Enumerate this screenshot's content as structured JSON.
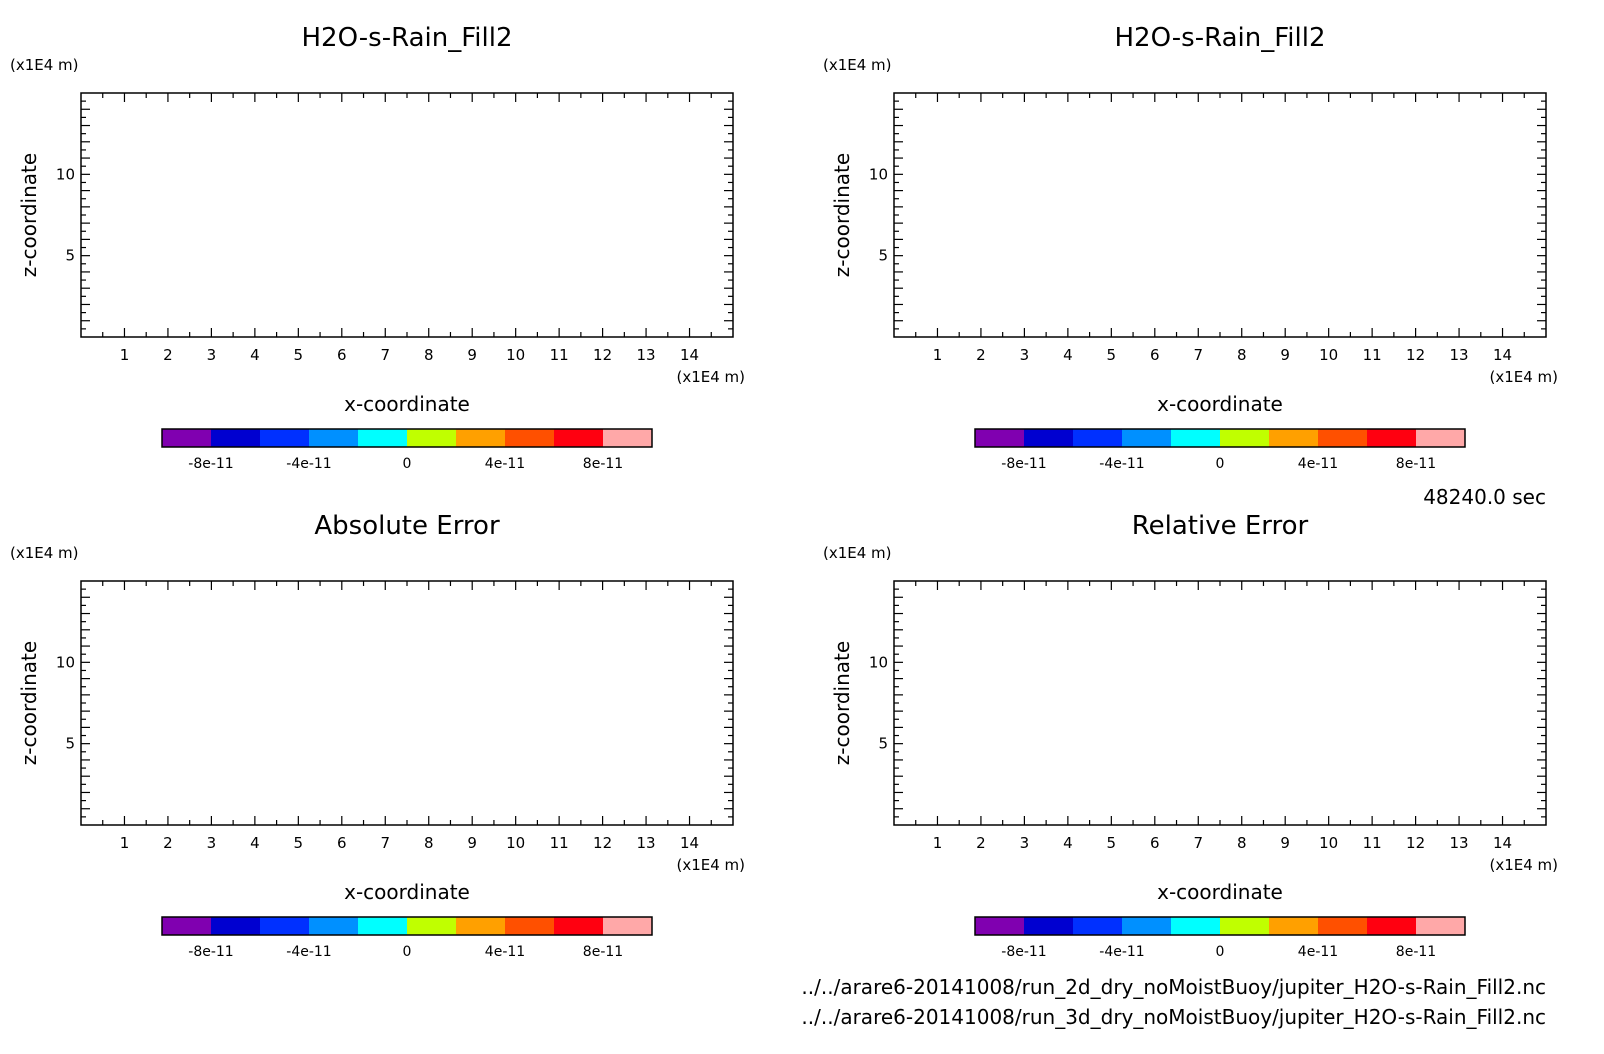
{
  "chart_data": [
    {
      "type": "heatmap",
      "title": "H2O-s-Rain_Fill2",
      "xlabel": "x-coordinate",
      "ylabel": "z-coordinate",
      "x_unit": "(x1E4 m)",
      "y_unit": "(x1E4 m)",
      "xlim": [
        0,
        15
      ],
      "ylim": [
        0,
        15
      ],
      "x_ticks": [
        "1",
        "2",
        "3",
        "4",
        "5",
        "6",
        "7",
        "8",
        "9",
        "10",
        "11",
        "12",
        "13",
        "14"
      ],
      "y_ticks": [
        "5",
        "10"
      ],
      "colorbar": {
        "colors": [
          "#8000b0",
          "#0000d0",
          "#0030ff",
          "#0090ff",
          "#00ffff",
          "#c0ff00",
          "#ffa000",
          "#ff5000",
          "#ff0010",
          "#ffa8a8"
        ],
        "labels": [
          "-8e-11",
          "-4e-11",
          "0",
          "4e-11",
          "8e-11"
        ]
      },
      "values": []
    },
    {
      "type": "heatmap",
      "title": "H2O-s-Rain_Fill2",
      "xlabel": "x-coordinate",
      "ylabel": "z-coordinate",
      "x_unit": "(x1E4 m)",
      "y_unit": "(x1E4 m)",
      "xlim": [
        0,
        15
      ],
      "ylim": [
        0,
        15
      ],
      "x_ticks": [
        "1",
        "2",
        "3",
        "4",
        "5",
        "6",
        "7",
        "8",
        "9",
        "10",
        "11",
        "12",
        "13",
        "14"
      ],
      "y_ticks": [
        "5",
        "10"
      ],
      "colorbar": {
        "colors": [
          "#8000b0",
          "#0000d0",
          "#0030ff",
          "#0090ff",
          "#00ffff",
          "#c0ff00",
          "#ffa000",
          "#ff5000",
          "#ff0010",
          "#ffa8a8"
        ],
        "labels": [
          "-8e-11",
          "-4e-11",
          "0",
          "4e-11",
          "8e-11"
        ]
      },
      "values": []
    },
    {
      "type": "heatmap",
      "title": "Absolute Error",
      "xlabel": "x-coordinate",
      "ylabel": "z-coordinate",
      "x_unit": "(x1E4 m)",
      "y_unit": "(x1E4 m)",
      "xlim": [
        0,
        15
      ],
      "ylim": [
        0,
        15
      ],
      "x_ticks": [
        "1",
        "2",
        "3",
        "4",
        "5",
        "6",
        "7",
        "8",
        "9",
        "10",
        "11",
        "12",
        "13",
        "14"
      ],
      "y_ticks": [
        "5",
        "10"
      ],
      "colorbar": {
        "colors": [
          "#8000b0",
          "#0000d0",
          "#0030ff",
          "#0090ff",
          "#00ffff",
          "#c0ff00",
          "#ffa000",
          "#ff5000",
          "#ff0010",
          "#ffa8a8"
        ],
        "labels": [
          "-8e-11",
          "-4e-11",
          "0",
          "4e-11",
          "8e-11"
        ]
      },
      "values": []
    },
    {
      "type": "heatmap",
      "title": "Relative Error",
      "xlabel": "x-coordinate",
      "ylabel": "z-coordinate",
      "x_unit": "(x1E4 m)",
      "y_unit": "(x1E4 m)",
      "xlim": [
        0,
        15
      ],
      "ylim": [
        0,
        15
      ],
      "x_ticks": [
        "1",
        "2",
        "3",
        "4",
        "5",
        "6",
        "7",
        "8",
        "9",
        "10",
        "11",
        "12",
        "13",
        "14"
      ],
      "y_ticks": [
        "5",
        "10"
      ],
      "colorbar": {
        "colors": [
          "#8000b0",
          "#0000d0",
          "#0030ff",
          "#0090ff",
          "#00ffff",
          "#c0ff00",
          "#ffa000",
          "#ff5000",
          "#ff0010",
          "#ffa8a8"
        ],
        "labels": [
          "-8e-11",
          "-4e-11",
          "0",
          "4e-11",
          "8e-11"
        ]
      },
      "values": []
    }
  ],
  "time_label": "48240.0 sec",
  "files": [
    "../../arare6-20141008/run_2d_dry_noMoistBuoy/jupiter_H2O-s-Rain_Fill2.nc",
    "../../arare6-20141008/run_3d_dry_noMoistBuoy/jupiter_H2O-s-Rain_Fill2.nc"
  ]
}
